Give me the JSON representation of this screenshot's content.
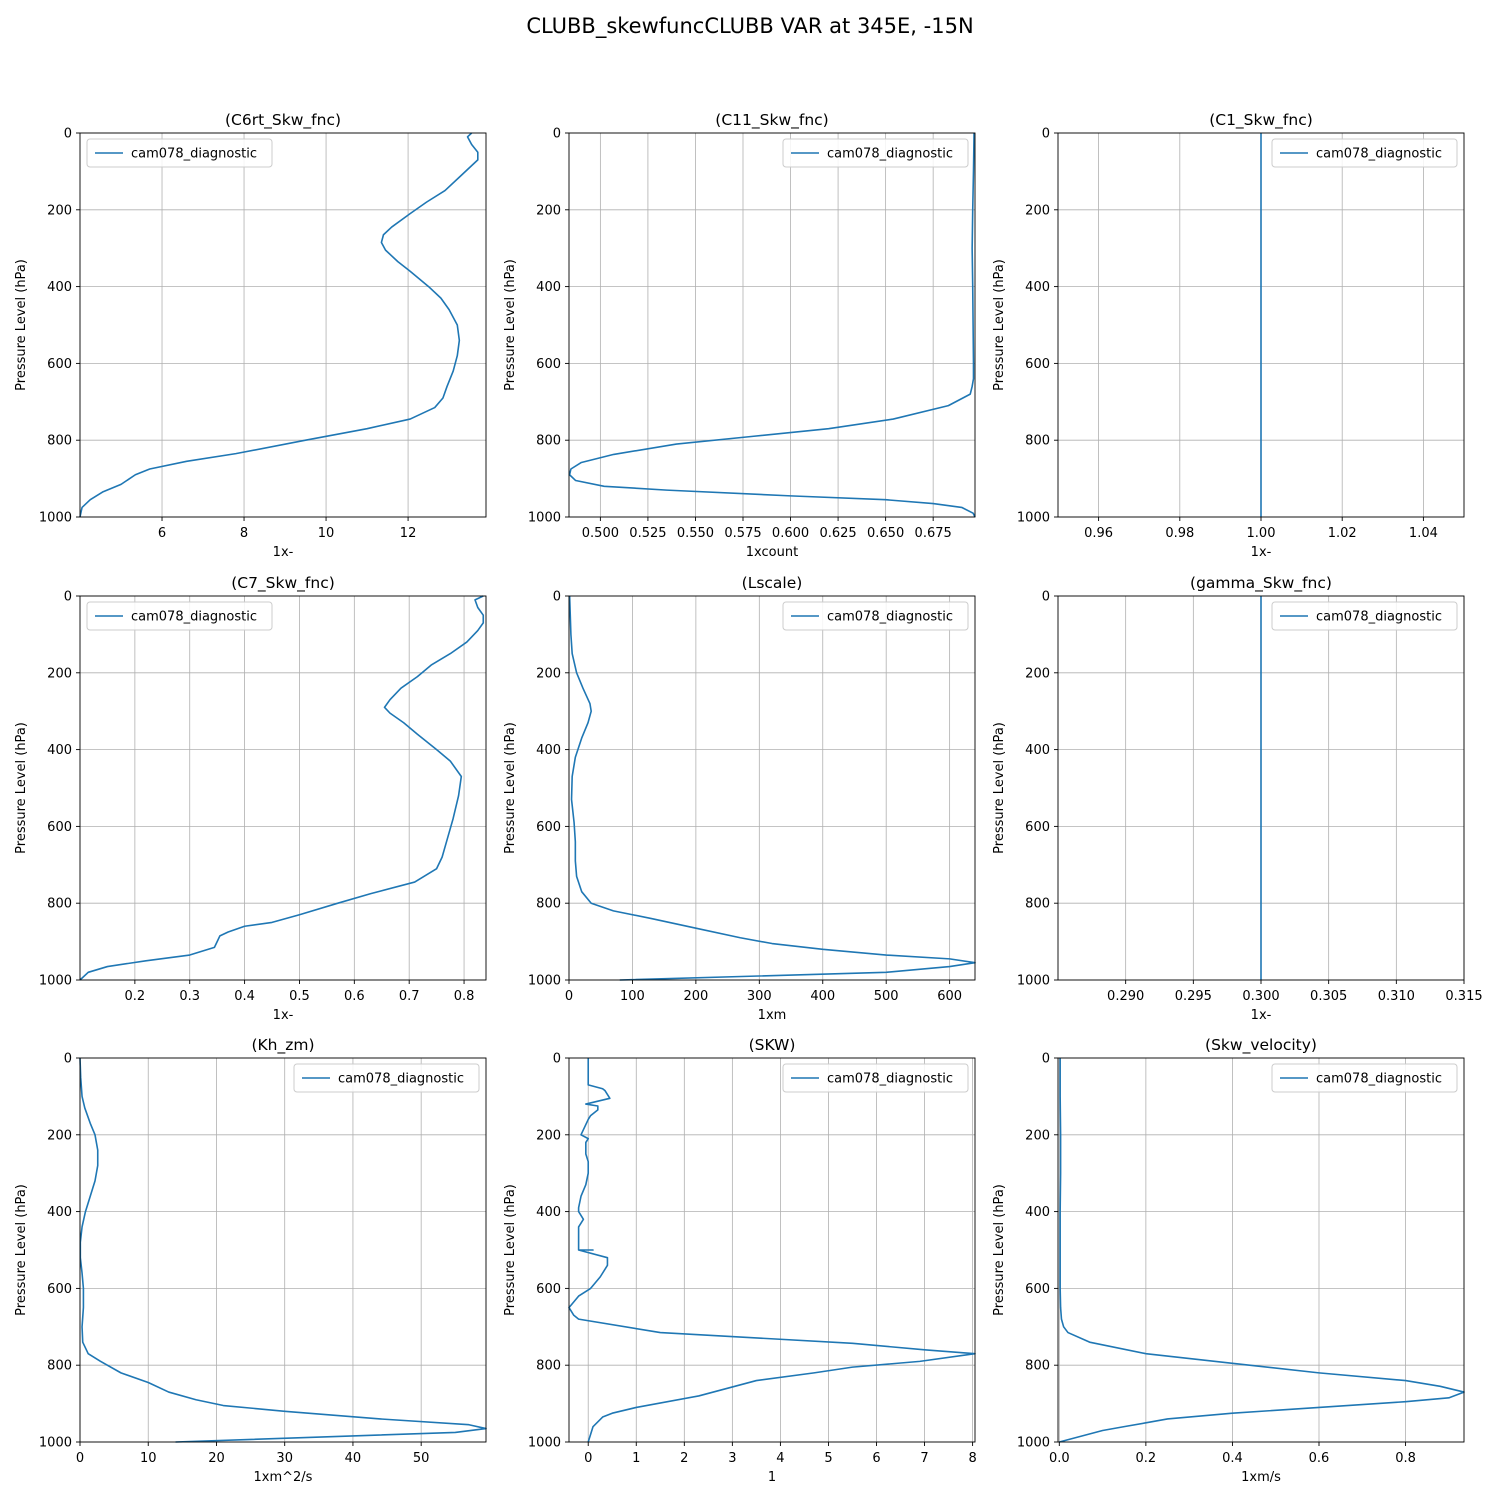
{
  "figure": {
    "title": "CLUBB_skewfuncCLUBB VAR at 345E, -15N"
  },
  "colors": {
    "series": "#1f77b4",
    "grid": "#b0b0b0",
    "axis": "#000000"
  },
  "chart_data": [
    {
      "type": "line",
      "title": "(C6rt_Skw_fnc)",
      "xlabel": "1x-",
      "ylabel": "Pressure Level (hPa)",
      "xlim": [
        4.0,
        13.9
      ],
      "ylim": [
        1000,
        0
      ],
      "xticks": [
        6,
        8,
        10,
        12
      ],
      "xtick_labels": [
        "6",
        "8",
        "10",
        "12"
      ],
      "yticks": [
        0,
        200,
        400,
        600,
        800,
        1000
      ],
      "ytick_labels": [
        "0",
        "200",
        "400",
        "600",
        "800",
        "1000"
      ],
      "grid": true,
      "legend_loc": "upper-left",
      "series": [
        {
          "name": "cam078_diagnostic",
          "x": [
            13.55,
            13.45,
            13.55,
            13.7,
            13.7,
            13.55,
            13.3,
            12.9,
            12.45,
            12.05,
            11.6,
            11.4,
            11.35,
            11.45,
            11.75,
            12.05,
            12.5,
            12.8,
            13.0,
            13.2,
            13.25,
            13.2,
            13.1,
            12.95,
            12.85,
            12.65,
            12.05,
            11.0,
            9.5,
            7.8,
            6.6,
            5.7,
            5.35,
            5.0,
            4.55,
            4.25,
            4.05,
            4.0
          ],
          "y": [
            0,
            10,
            30,
            50,
            70,
            85,
            110,
            150,
            180,
            210,
            245,
            265,
            285,
            305,
            335,
            360,
            400,
            430,
            460,
            500,
            540,
            580,
            620,
            660,
            690,
            715,
            745,
            770,
            800,
            835,
            855,
            875,
            890,
            915,
            935,
            955,
            975,
            1000
          ]
        }
      ]
    },
    {
      "type": "line",
      "title": "(C11_Skw_fnc)",
      "xlabel": "1xcount",
      "ylabel": "Pressure Level (hPa)",
      "xlim": [
        0.4835,
        0.697
      ],
      "ylim": [
        1000,
        0
      ],
      "xticks": [
        0.5,
        0.525,
        0.55,
        0.575,
        0.6,
        0.625,
        0.65,
        0.675
      ],
      "xtick_labels": [
        "0.500",
        "0.525",
        "0.550",
        "0.575",
        "0.600",
        "0.625",
        "0.650",
        "0.675"
      ],
      "yticks": [
        0,
        200,
        400,
        600,
        800,
        1000
      ],
      "ytick_labels": [
        "0",
        "200",
        "400",
        "600",
        "800",
        "1000"
      ],
      "grid": true,
      "legend_loc": "upper-right",
      "series": [
        {
          "name": "cam078_diagnostic",
          "x": [
            0.6965,
            0.6962,
            0.6958,
            0.6955,
            0.6958,
            0.696,
            0.6962,
            0.6962,
            0.6955,
            0.6945,
            0.683,
            0.654,
            0.62,
            0.58,
            0.54,
            0.507,
            0.49,
            0.4845,
            0.4838,
            0.487,
            0.502,
            0.535,
            0.6,
            0.65,
            0.675,
            0.69,
            0.696,
            0.697
          ],
          "y": [
            0,
            100,
            200,
            300,
            400,
            500,
            600,
            640,
            660,
            680,
            710,
            745,
            770,
            790,
            810,
            837,
            858,
            875,
            890,
            905,
            920,
            930,
            945,
            955,
            965,
            975,
            990,
            1000
          ]
        }
      ]
    },
    {
      "type": "line",
      "title": "(C1_Skw_fnc)",
      "xlabel": "1x-",
      "ylabel": "Pressure Level (hPa)",
      "xlim": [
        0.95,
        1.05
      ],
      "ylim": [
        1000,
        0
      ],
      "xticks": [
        0.96,
        0.98,
        1.0,
        1.02,
        1.04
      ],
      "xtick_labels": [
        "0.96",
        "0.98",
        "1.00",
        "1.02",
        "1.04"
      ],
      "yticks": [
        0,
        200,
        400,
        600,
        800,
        1000
      ],
      "ytick_labels": [
        "0",
        "200",
        "400",
        "600",
        "800",
        "1000"
      ],
      "grid": true,
      "legend_loc": "upper-right",
      "series": [
        {
          "name": "cam078_diagnostic",
          "x": [
            1.0,
            1.0
          ],
          "y": [
            0,
            1000
          ]
        }
      ]
    },
    {
      "type": "line",
      "title": "(C7_Skw_fnc)",
      "xlabel": "1x-",
      "ylabel": "Pressure Level (hPa)",
      "xlim": [
        0.1,
        0.84
      ],
      "ylim": [
        1000,
        0
      ],
      "xticks": [
        0.2,
        0.3,
        0.4,
        0.5,
        0.6,
        0.7,
        0.8
      ],
      "xtick_labels": [
        "0.2",
        "0.3",
        "0.4",
        "0.5",
        "0.6",
        "0.7",
        "0.8"
      ],
      "yticks": [
        0,
        200,
        400,
        600,
        800,
        1000
      ],
      "ytick_labels": [
        "0",
        "200",
        "400",
        "600",
        "800",
        "1000"
      ],
      "grid": true,
      "legend_loc": "upper-left",
      "series": [
        {
          "name": "cam078_diagnostic",
          "x": [
            0.835,
            0.82,
            0.825,
            0.835,
            0.835,
            0.825,
            0.805,
            0.775,
            0.74,
            0.715,
            0.685,
            0.665,
            0.655,
            0.665,
            0.69,
            0.715,
            0.75,
            0.775,
            0.795,
            0.79,
            0.78,
            0.77,
            0.76,
            0.75,
            0.71,
            0.63,
            0.57,
            0.5,
            0.45,
            0.4,
            0.37,
            0.355,
            0.35,
            0.345,
            0.3,
            0.22,
            0.15,
            0.115,
            0.1
          ],
          "y": [
            0,
            10,
            30,
            50,
            70,
            90,
            120,
            150,
            180,
            210,
            240,
            270,
            290,
            305,
            330,
            360,
            400,
            430,
            470,
            520,
            580,
            630,
            680,
            710,
            745,
            775,
            800,
            830,
            850,
            860,
            875,
            885,
            900,
            915,
            935,
            950,
            965,
            980,
            1000
          ]
        }
      ]
    },
    {
      "type": "line",
      "title": "(Lscale)",
      "xlabel": "1xm",
      "ylabel": "Pressure Level (hPa)",
      "xlim": [
        0,
        640
      ],
      "ylim": [
        1000,
        0
      ],
      "xticks": [
        0,
        100,
        200,
        300,
        400,
        500,
        600
      ],
      "xtick_labels": [
        "0",
        "100",
        "200",
        "300",
        "400",
        "500",
        "600"
      ],
      "yticks": [
        0,
        200,
        400,
        600,
        800,
        1000
      ],
      "ytick_labels": [
        "0",
        "200",
        "400",
        "600",
        "800",
        "1000"
      ],
      "grid": true,
      "legend_loc": "upper-right",
      "series": [
        {
          "name": "cam078_diagnostic",
          "x": [
            1,
            2,
            3,
            5,
            12,
            22,
            33,
            35,
            30,
            20,
            10,
            5,
            4,
            8,
            10,
            10,
            12,
            20,
            35,
            70,
            130,
            200,
            270,
            320,
            400,
            500,
            600,
            640,
            600,
            500,
            80
          ],
          "y": [
            0,
            50,
            100,
            150,
            200,
            240,
            280,
            300,
            330,
            370,
            420,
            470,
            530,
            590,
            640,
            690,
            730,
            770,
            800,
            820,
            840,
            865,
            890,
            905,
            920,
            935,
            945,
            955,
            965,
            980,
            1000
          ]
        }
      ]
    },
    {
      "type": "line",
      "title": "(gamma_Skw_fnc)",
      "xlabel": "1x-",
      "ylabel": "Pressure Level (hPa)",
      "xlim": [
        0.285,
        0.315
      ],
      "ylim": [
        1000,
        0
      ],
      "xticks": [
        0.29,
        0.295,
        0.3,
        0.305,
        0.31,
        0.315
      ],
      "xtick_labels": [
        "0.290",
        "0.295",
        "0.300",
        "0.305",
        "0.310",
        "0.315"
      ],
      "yticks": [
        0,
        200,
        400,
        600,
        800,
        1000
      ],
      "ytick_labels": [
        "0",
        "200",
        "400",
        "600",
        "800",
        "1000"
      ],
      "grid": true,
      "legend_loc": "upper-right",
      "series": [
        {
          "name": "cam078_diagnostic",
          "x": [
            0.3,
            0.3
          ],
          "y": [
            0,
            1000
          ]
        }
      ]
    },
    {
      "type": "line",
      "title": "(Kh_zm)",
      "xlabel": "1xm^2/s",
      "ylabel": "Pressure Level (hPa)",
      "xlim": [
        0,
        59.5
      ],
      "ylim": [
        1000,
        0
      ],
      "xticks": [
        0,
        10,
        20,
        30,
        40,
        50
      ],
      "xtick_labels": [
        "0",
        "10",
        "20",
        "30",
        "40",
        "50"
      ],
      "yticks": [
        0,
        200,
        400,
        600,
        800,
        1000
      ],
      "ytick_labels": [
        "0",
        "200",
        "400",
        "600",
        "800",
        "1000"
      ],
      "grid": true,
      "legend_loc": "upper-right",
      "series": [
        {
          "name": "cam078_diagnostic",
          "x": [
            0,
            0.1,
            0.3,
            0.7,
            1.5,
            2.2,
            2.6,
            2.6,
            2.2,
            1.5,
            0.8,
            0.3,
            0.05,
            0.05,
            0.3,
            0.5,
            0.5,
            0.3,
            0.4,
            1.2,
            3.0,
            6.0,
            10.0,
            13.0,
            17.0,
            21.0,
            30.0,
            44.0,
            57.0,
            59.5,
            55.0,
            14.0
          ],
          "y": [
            0,
            50,
            100,
            130,
            170,
            200,
            240,
            280,
            320,
            360,
            400,
            440,
            480,
            520,
            560,
            600,
            650,
            700,
            740,
            770,
            790,
            820,
            845,
            870,
            890,
            905,
            920,
            940,
            955,
            965,
            975,
            1000
          ]
        }
      ]
    },
    {
      "type": "line",
      "title": "(SKW)",
      "xlabel": "1",
      "ylabel": "Pressure Level (hPa)",
      "xlim": [
        -0.4,
        8.05
      ],
      "ylim": [
        1000,
        0
      ],
      "xticks": [
        0,
        1,
        2,
        3,
        4,
        5,
        6,
        7,
        8
      ],
      "xtick_labels": [
        "0",
        "1",
        "2",
        "3",
        "4",
        "5",
        "6",
        "7",
        "8"
      ],
      "yticks": [
        0,
        200,
        400,
        600,
        800,
        1000
      ],
      "ytick_labels": [
        "0",
        "200",
        "400",
        "600",
        "800",
        "1000"
      ],
      "grid": true,
      "legend_loc": "upper-right",
      "series": [
        {
          "name": "cam078_diagnostic",
          "x": [
            0.0,
            0.0,
            0.0,
            0.3,
            0.35,
            0.45,
            -0.05,
            0.2,
            0.2,
            0.05,
            0.0,
            -0.15,
            0.0,
            -0.05,
            -0.05,
            0.0,
            0.0,
            -0.05,
            -0.15,
            -0.2,
            -0.2,
            -0.1,
            -0.2,
            -0.2,
            -0.2,
            -0.2,
            0.1,
            -0.2,
            0.4,
            0.4,
            0.25,
            0.05,
            -0.2,
            -0.4,
            -0.3,
            -0.2,
            1.5,
            5.5,
            7.0,
            8.05,
            6.9,
            5.5,
            4.7,
            3.5,
            2.3,
            1.0,
            0.5,
            0.3,
            0.1,
            0.0
          ],
          "y": [
            0,
            30,
            70,
            80,
            85,
            105,
            120,
            125,
            135,
            150,
            160,
            200,
            210,
            220,
            250,
            270,
            300,
            330,
            360,
            390,
            400,
            420,
            440,
            460,
            480,
            500,
            500,
            500,
            520,
            540,
            570,
            600,
            620,
            650,
            670,
            680,
            715,
            743,
            760,
            770,
            790,
            805,
            820,
            840,
            880,
            910,
            925,
            935,
            960,
            1000
          ]
        }
      ]
    },
    {
      "type": "line",
      "title": "(Skw_velocity)",
      "xlabel": "1xm/s",
      "ylabel": "Pressure Level (hPa)",
      "xlim": [
        -0.003,
        0.935
      ],
      "ylim": [
        1000,
        0
      ],
      "xticks": [
        0.0,
        0.2,
        0.4,
        0.6,
        0.8
      ],
      "xtick_labels": [
        "0.0",
        "0.2",
        "0.4",
        "0.6",
        "0.8"
      ],
      "yticks": [
        0,
        200,
        400,
        600,
        800,
        1000
      ],
      "ytick_labels": [
        "0",
        "200",
        "400",
        "600",
        "800",
        "1000"
      ],
      "grid": true,
      "legend_loc": "upper-right",
      "series": [
        {
          "name": "cam078_diagnostic",
          "x": [
            0.002,
            0.002,
            0.003,
            0.003,
            0.002,
            0.002,
            0.002,
            0.003,
            0.005,
            0.01,
            0.02,
            0.07,
            0.2,
            0.4,
            0.6,
            0.8,
            0.88,
            0.935,
            0.9,
            0.8,
            0.6,
            0.4,
            0.25,
            0.2,
            0.15,
            0.1,
            0.05,
            0.0
          ],
          "y": [
            0,
            100,
            200,
            300,
            400,
            500,
            600,
            650,
            680,
            700,
            715,
            740,
            770,
            795,
            820,
            840,
            855,
            870,
            885,
            895,
            910,
            925,
            940,
            950,
            960,
            970,
            985,
            1000
          ]
        }
      ]
    }
  ]
}
